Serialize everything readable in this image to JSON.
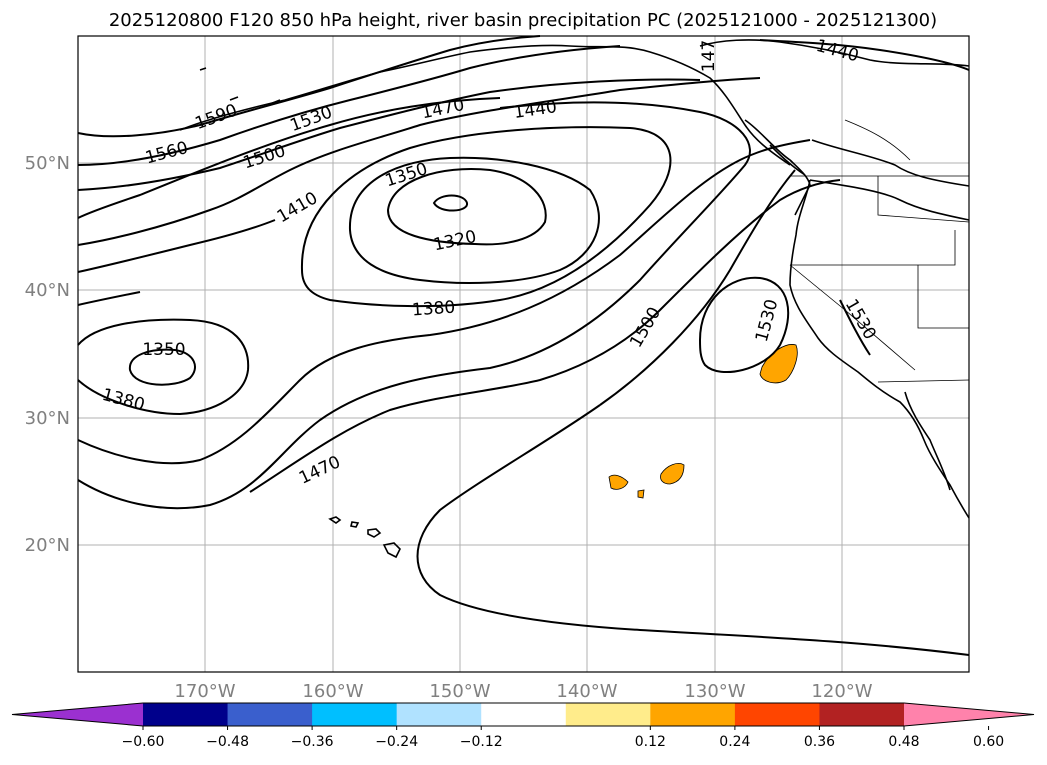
{
  "title": "2025120800 F120 850 hPa height, river basin precipitation PC (2025121000 - 2025121300)",
  "lat_ticks": [
    "50°N",
    "40°N",
    "30°N",
    "20°N"
  ],
  "lon_ticks": [
    "170°W",
    "160°W",
    "150°W",
    "140°W",
    "130°W",
    "120°W"
  ],
  "contour_labels": [
    "1590",
    "1560",
    "1530",
    "1500",
    "1470",
    "1440",
    "1410",
    "1350",
    "1320",
    "1380",
    "1350",
    "1380",
    "1470",
    "1500",
    "1530",
    "1530",
    "1440",
    "147"
  ],
  "colorbar": {
    "colors": [
      "#9b30d0",
      "#00008b",
      "#3a5fcd",
      "#00bfff",
      "#b0e2ff",
      "#ffffff",
      "#ffec8b",
      "#ffa500",
      "#ff4500",
      "#b22222",
      "#ff82ab"
    ],
    "tick_labels": [
      "−0.60",
      "−0.48",
      "−0.36",
      "−0.24",
      "−0.12",
      "0.12",
      "0.24",
      "0.36",
      "0.48",
      "0.60"
    ]
  },
  "precip_fill_color": "#ffa500"
}
